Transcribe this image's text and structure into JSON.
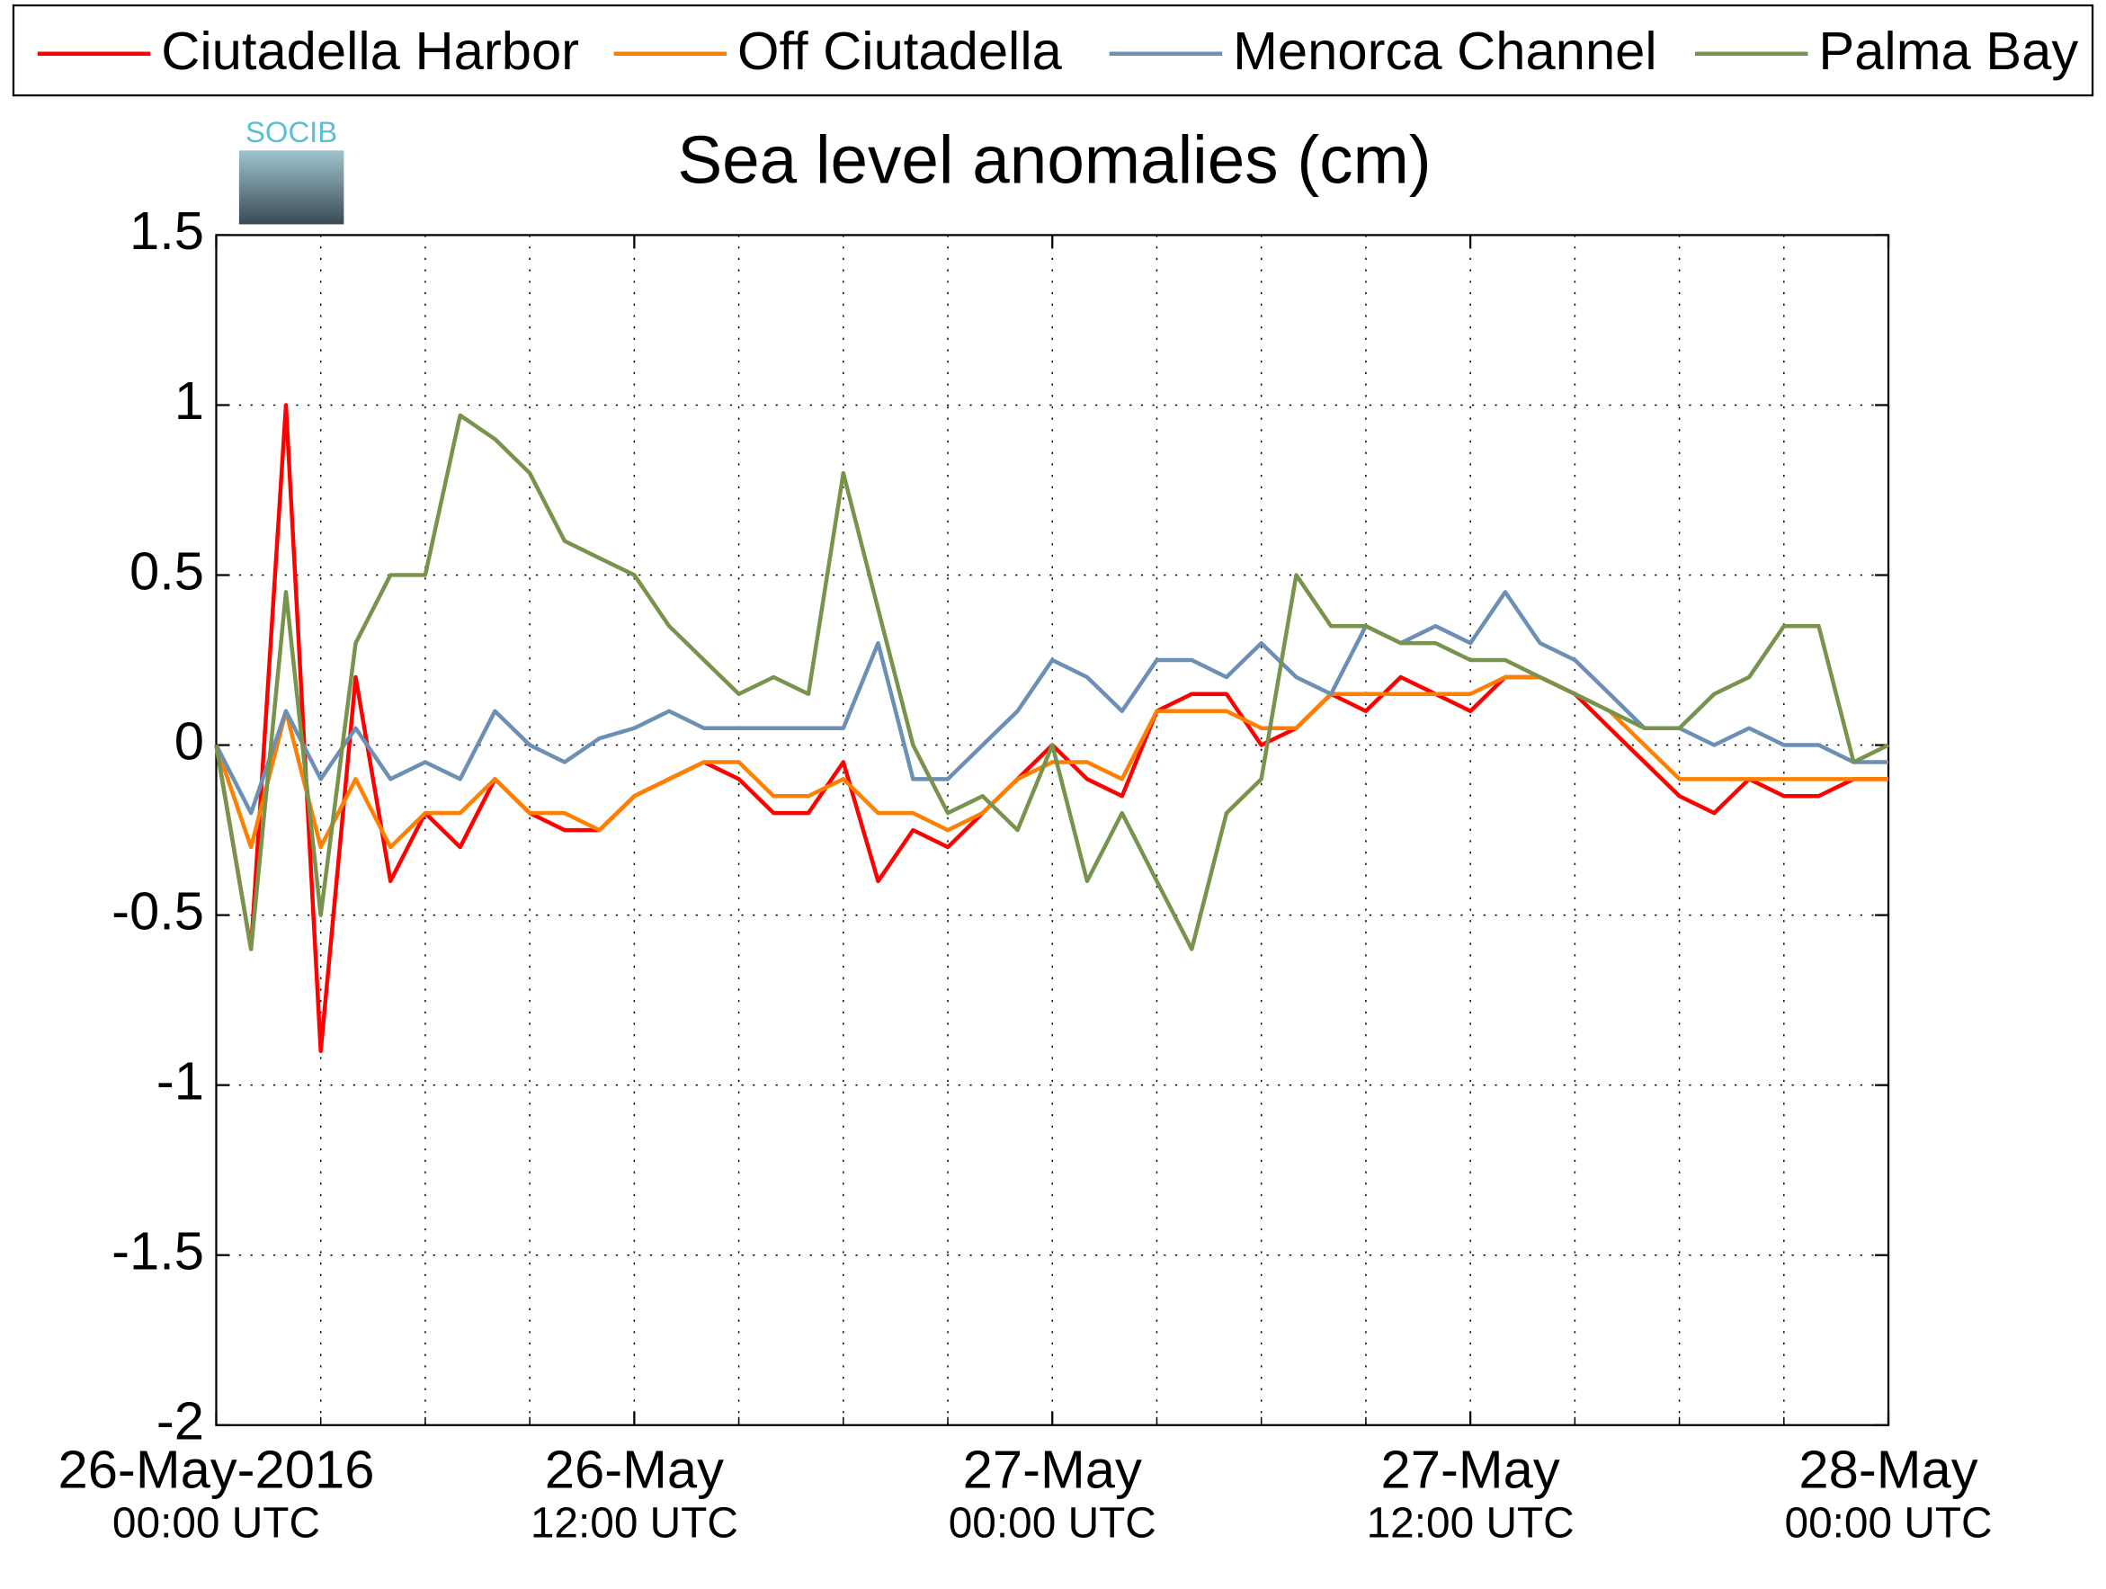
{
  "logo": {
    "text": "SOCIB"
  },
  "chart_data": {
    "type": "line",
    "title": "Sea level anomalies (cm)",
    "legend": "top",
    "grid": true,
    "ylim": [
      -2,
      1.5
    ],
    "yticks": [
      1.5,
      1,
      0.5,
      0,
      -0.5,
      -1,
      -1.5,
      -2
    ],
    "xlim": [
      "2016-05-26T00:00",
      "2016-05-28T00:00"
    ],
    "xticks": [
      {
        "value": "2016-05-26T00:00",
        "label": [
          "26-May-2016",
          "00:00 UTC"
        ]
      },
      {
        "value": "2016-05-26T12:00",
        "label": [
          "26-May",
          "12:00 UTC"
        ]
      },
      {
        "value": "2016-05-27T00:00",
        "label": [
          "27-May",
          "00:00 UTC"
        ]
      },
      {
        "value": "2016-05-27T12:00",
        "label": [
          "27-May",
          "12:00 UTC"
        ]
      },
      {
        "value": "2016-05-28T00:00",
        "label": [
          "28-May",
          "00:00 UTC"
        ]
      }
    ],
    "xminorticks": [
      "2016-05-26T03:00",
      "2016-05-26T06:00",
      "2016-05-26T09:00",
      "2016-05-26T15:00",
      "2016-05-26T18:00",
      "2016-05-26T21:00",
      "2016-05-27T03:00",
      "2016-05-27T06:00",
      "2016-05-27T09:00",
      "2016-05-27T15:00",
      "2016-05-27T18:00",
      "2016-05-27T21:00"
    ],
    "x": [
      "2016-05-26T00:00",
      "2016-05-26T01:00",
      "2016-05-26T02:00",
      "2016-05-26T03:00",
      "2016-05-26T04:00",
      "2016-05-26T05:00",
      "2016-05-26T06:00",
      "2016-05-26T07:00",
      "2016-05-26T08:00",
      "2016-05-26T09:00",
      "2016-05-26T10:00",
      "2016-05-26T11:00",
      "2016-05-26T12:00",
      "2016-05-26T13:00",
      "2016-05-26T14:00",
      "2016-05-26T15:00",
      "2016-05-26T16:00",
      "2016-05-26T17:00",
      "2016-05-26T18:00",
      "2016-05-26T19:00",
      "2016-05-26T20:00",
      "2016-05-26T21:00",
      "2016-05-26T22:00",
      "2016-05-26T23:00",
      "2016-05-27T00:00",
      "2016-05-27T01:00",
      "2016-05-27T02:00",
      "2016-05-27T03:00",
      "2016-05-27T04:00",
      "2016-05-27T05:00",
      "2016-05-27T06:00",
      "2016-05-27T07:00",
      "2016-05-27T08:00",
      "2016-05-27T09:00",
      "2016-05-27T10:00",
      "2016-05-27T11:00",
      "2016-05-27T12:00",
      "2016-05-27T13:00",
      "2016-05-27T14:00",
      "2016-05-27T15:00",
      "2016-05-27T16:00",
      "2016-05-27T17:00",
      "2016-05-27T18:00",
      "2016-05-27T19:00",
      "2016-05-27T20:00",
      "2016-05-27T21:00",
      "2016-05-27T22:00",
      "2016-05-27T23:00",
      "2016-05-28T00:00"
    ],
    "series": [
      {
        "name": "Ciutadella Harbor",
        "color": "#ff0000",
        "values": [
          0,
          -0.6,
          1.0,
          -0.9,
          0.2,
          -0.4,
          -0.2,
          -0.3,
          -0.1,
          -0.2,
          -0.25,
          -0.25,
          -0.15,
          -0.1,
          -0.05,
          -0.1,
          -0.2,
          -0.2,
          -0.05,
          -0.4,
          -0.25,
          -0.3,
          -0.2,
          -0.1,
          0,
          -0.1,
          -0.15,
          0.1,
          0.15,
          0.15,
          0,
          0.05,
          0.15,
          0.1,
          0.2,
          0.15,
          0.1,
          0.2,
          0.2,
          0.15,
          0.05,
          -0.05,
          -0.15,
          -0.2,
          -0.1,
          -0.15,
          -0.15,
          -0.1,
          -0.1
        ]
      },
      {
        "name": "Off Ciutadella",
        "color": "#ff8000",
        "values": [
          0,
          -0.3,
          0.1,
          -0.3,
          -0.1,
          -0.3,
          -0.2,
          -0.2,
          -0.1,
          -0.2,
          -0.2,
          -0.25,
          -0.15,
          -0.1,
          -0.05,
          -0.05,
          -0.15,
          -0.15,
          -0.1,
          -0.2,
          -0.2,
          -0.25,
          -0.2,
          -0.1,
          -0.05,
          -0.05,
          -0.1,
          0.1,
          0.1,
          0.1,
          0.05,
          0.05,
          0.15,
          0.15,
          0.15,
          0.15,
          0.15,
          0.2,
          0.2,
          0.15,
          0.1,
          0,
          -0.1,
          -0.1,
          -0.1,
          -0.1,
          -0.1,
          -0.1,
          -0.1
        ]
      },
      {
        "name": "Menorca Channel",
        "color": "#6b8fb5",
        "values": [
          0,
          -0.2,
          0.1,
          -0.1,
          0.05,
          -0.1,
          -0.05,
          -0.1,
          0.1,
          0,
          -0.05,
          0.02,
          0.05,
          0.1,
          0.05,
          0.05,
          0.05,
          0.05,
          0.05,
          0.3,
          -0.1,
          -0.1,
          0,
          0.1,
          0.25,
          0.2,
          0.1,
          0.25,
          0.25,
          0.2,
          0.3,
          0.2,
          0.15,
          0.35,
          0.3,
          0.35,
          0.3,
          0.45,
          0.3,
          0.25,
          0.15,
          0.05,
          0.05,
          0,
          0.05,
          0,
          0,
          -0.05,
          -0.05
        ]
      },
      {
        "name": "Palma Bay",
        "color": "#78934b",
        "values": [
          0,
          -0.6,
          0.45,
          -0.5,
          0.3,
          0.5,
          0.5,
          0.97,
          0.9,
          0.8,
          0.6,
          0.55,
          0.5,
          0.35,
          0.25,
          0.15,
          0.2,
          0.15,
          0.8,
          0.4,
          0,
          -0.2,
          -0.15,
          -0.25,
          0,
          -0.4,
          -0.2,
          -0.4,
          -0.6,
          -0.2,
          -0.1,
          0.5,
          0.35,
          0.35,
          0.3,
          0.3,
          0.25,
          0.25,
          0.2,
          0.15,
          0.1,
          0.05,
          0.05,
          0.15,
          0.2,
          0.35,
          0.35,
          -0.05,
          0
        ]
      }
    ]
  }
}
